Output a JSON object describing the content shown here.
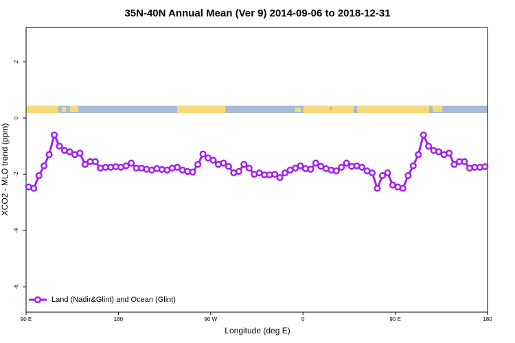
{
  "chart_data": {
    "type": "line",
    "title": "35N-40N Annual Mean (Ver 9)   2014-09-06 to 2018-12-31",
    "x_label": "Longitude (deg E)",
    "y_label": "XCO2 - MLO trend (ppm)",
    "xlim": [
      90,
      540
    ],
    "ylim": [
      -6.9,
      3.22
    ],
    "xticks": [
      {
        "value": 90,
        "label": "90 E"
      },
      180,
      {
        "value": 270,
        "label": "90 W"
      },
      {
        "value": 360,
        "label": "0"
      },
      {
        "value": 450,
        "label": "90 E"
      },
      {
        "value": 540,
        "label": "180"
      }
    ],
    "yticks": [
      -6,
      -4,
      -2,
      0,
      2
    ],
    "legend": "bottom-left",
    "x": [
      92.5,
      97.5,
      102.5,
      107.5,
      112.5,
      117.5,
      122.5,
      127.5,
      132.5,
      137.5,
      142.5,
      147.5,
      152.5,
      157.5,
      162.5,
      167.5,
      172.5,
      177.5,
      182.5,
      187.5,
      192.5,
      197.5,
      202.5,
      207.5,
      212.5,
      217.5,
      222.5,
      227.5,
      232.5,
      237.5,
      242.5,
      247.5,
      252.5,
      257.5,
      262.5,
      267.5,
      272.5,
      277.5,
      282.5,
      287.5,
      292.5,
      297.5,
      302.5,
      307.5,
      312.5,
      317.5,
      322.5,
      327.5,
      332.5,
      337.5,
      342.5,
      347.5,
      352.5,
      357.5,
      362.5,
      367.5,
      372.5,
      377.5,
      382.5,
      387.5,
      392.5,
      397.5,
      402.5,
      407.5,
      412.5,
      417.5,
      422.5,
      427.5,
      432.5,
      437.5,
      442.5,
      447.5,
      452.5,
      457.5,
      462.5,
      467.5,
      472.5,
      477.5,
      482.5,
      487.5,
      492.5,
      497.5,
      502.5,
      507.5,
      512.5,
      517.5,
      522.5,
      527.5,
      532.5,
      537.5
    ],
    "series": [
      {
        "name": "Land (Nadir&Glint) and Ocean (Glint)",
        "color": "#a020f0",
        "values": [
          -2.45,
          -2.5,
          -2.05,
          -1.7,
          -1.3,
          -0.6,
          -1.0,
          -1.15,
          -1.2,
          -1.3,
          -1.25,
          -1.65,
          -1.55,
          -1.55,
          -1.78,
          -1.75,
          -1.75,
          -1.73,
          -1.75,
          -1.7,
          -1.6,
          -1.78,
          -1.78,
          -1.82,
          -1.85,
          -1.8,
          -1.83,
          -1.85,
          -1.78,
          -1.75,
          -1.85,
          -1.9,
          -1.92,
          -1.65,
          -1.28,
          -1.42,
          -1.5,
          -1.65,
          -1.6,
          -1.72,
          -1.95,
          -1.9,
          -1.65,
          -1.78,
          -2.0,
          -1.95,
          -2.02,
          -2.02,
          -2.0,
          -2.12,
          -1.95,
          -1.85,
          -1.78,
          -1.7,
          -1.8,
          -1.82,
          -1.6,
          -1.72,
          -1.8,
          -1.85,
          -1.88,
          -1.75,
          -1.6,
          -1.72,
          -1.7,
          -1.75,
          -1.88,
          -1.95,
          -2.5,
          -2.05,
          -1.95,
          -2.38,
          -2.45,
          -2.5,
          -2.05,
          -1.7,
          -1.3,
          -0.6,
          -1.0,
          -1.15,
          -1.2,
          -1.3,
          -1.25,
          -1.65,
          -1.55,
          -1.55,
          -1.78,
          -1.75,
          -1.75,
          -1.73
        ]
      }
    ]
  }
}
